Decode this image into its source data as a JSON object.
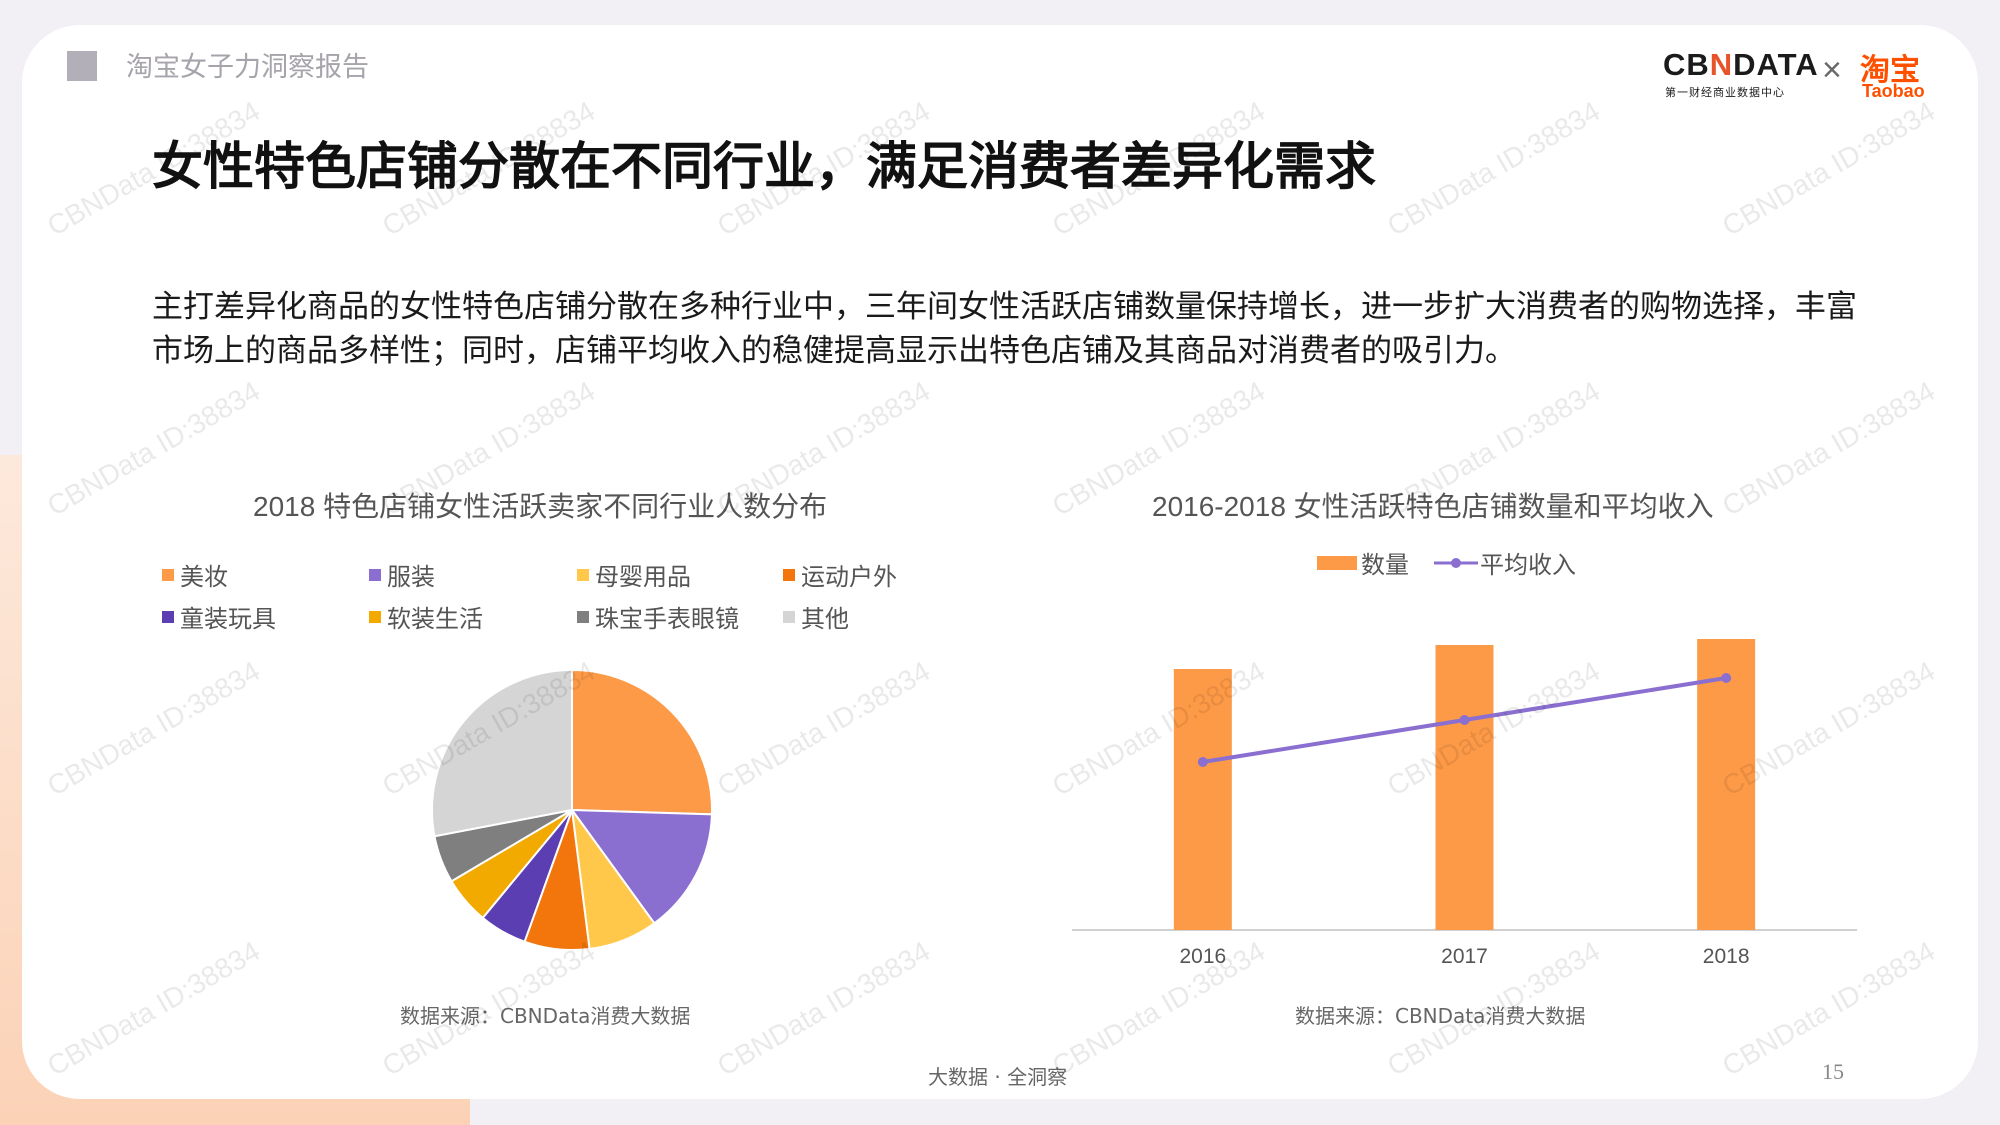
{
  "header": {
    "report_name": "淘宝女子力洞察报告",
    "logo_cbn_pre": "CB",
    "logo_cbn_n": "N",
    "logo_cbn_post": "DATA",
    "logo_cbn_sub": "第一财经商业数据中心",
    "logo_times": "×",
    "logo_taobao": "淘宝",
    "logo_taobao_en": "Taobao"
  },
  "title": "女性特色店铺分散在不同行业，满足消费者差异化需求",
  "description": "主打差异化商品的女性特色店铺分散在多种行业中，三年间女性活跃店铺数量保持增长，进一步扩大消费者的购物选择，丰富市场上的商品多样性；同时，店铺平均收入的稳健提高显示出特色店铺及其商品对消费者的吸引力。",
  "watermark": "CBNData ID:38834",
  "colors": {
    "orange": "#fd9a47",
    "purple": "#8a6fd0",
    "yellow": "#ffc84a",
    "deep_orange": "#f2760c",
    "indigo": "#5b3eb2",
    "gold": "#f2a900",
    "gray": "#7f7f7f",
    "light_gray": "#d5d5d5",
    "line": "#8a6fd0"
  },
  "chart_data": [
    {
      "type": "pie",
      "title": "2018 特色店铺女性活跃卖家不同行业人数分布",
      "series": [
        {
          "name": "美妆",
          "value": 25.5,
          "color": "#fd9a47"
        },
        {
          "name": "服装",
          "value": 14.5,
          "color": "#8a6fd0"
        },
        {
          "name": "母婴用品",
          "value": 8.0,
          "color": "#ffc84a"
        },
        {
          "name": "运动户外",
          "value": 7.5,
          "color": "#f2760c"
        },
        {
          "name": "童装玩具",
          "value": 5.5,
          "color": "#5b3eb2"
        },
        {
          "name": "软装生活",
          "value": 5.5,
          "color": "#f2a900"
        },
        {
          "name": "珠宝手表眼镜",
          "value": 5.5,
          "color": "#7f7f7f"
        },
        {
          "name": "其他",
          "value": 28.0,
          "color": "#d5d5d5"
        }
      ],
      "legend_position": "top",
      "source": "数据来源：CBNData消费大数据"
    },
    {
      "type": "bar",
      "title": "2016-2018 女性活跃特色店铺数量和平均收入",
      "categories": [
        "2016",
        "2017",
        "2018"
      ],
      "series": [
        {
          "name": "数量",
          "type": "bar",
          "values": [
            0.87,
            0.95,
            0.97
          ],
          "color": "#fd9a47"
        },
        {
          "name": "平均收入",
          "type": "line",
          "values": [
            0.56,
            0.7,
            0.84
          ],
          "color": "#8a6fd0"
        }
      ],
      "ylim": [
        0,
        1
      ],
      "grid": false,
      "legend_position": "top",
      "source": "数据来源：CBNData消费大数据"
    }
  ],
  "footer": {
    "slogan": "大数据 · 全洞察",
    "page": "15"
  }
}
